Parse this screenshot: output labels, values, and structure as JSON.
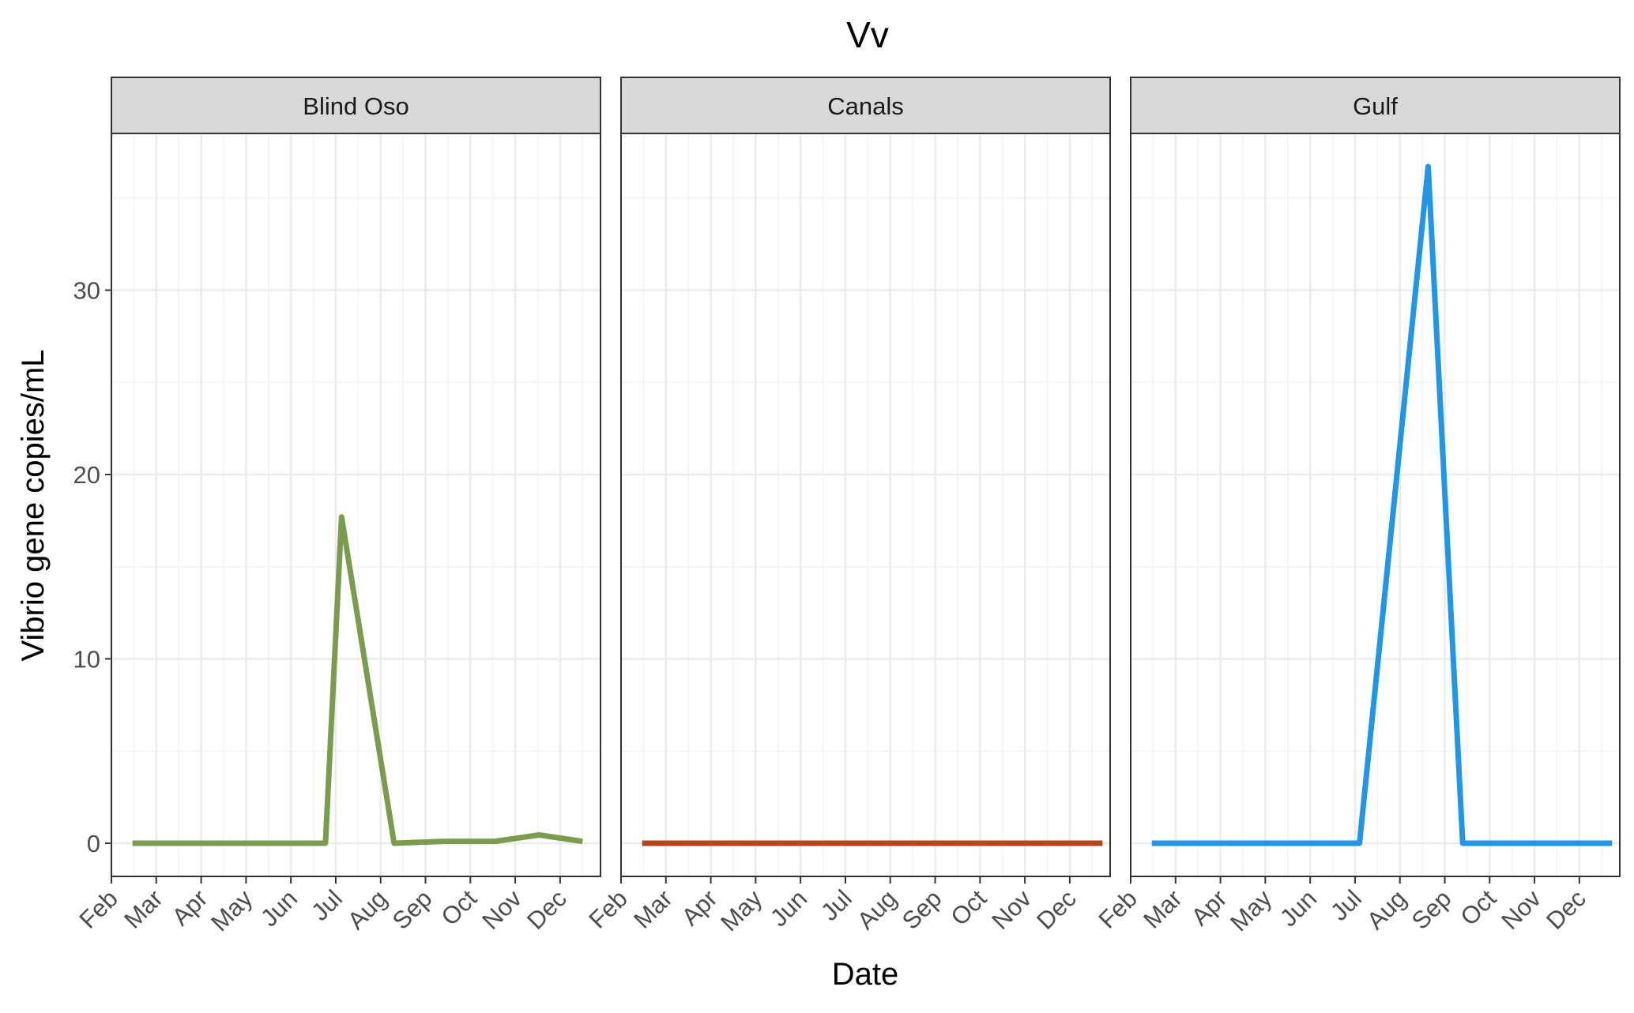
{
  "chart_data": {
    "type": "line",
    "title": "Vv",
    "xlabel": "Date",
    "ylabel": "Vibrio gene copies/mL",
    "x_tick_labels": [
      "Feb",
      "Mar",
      "Apr",
      "May",
      "Jun",
      "Jul",
      "Aug",
      "Sep",
      "Oct",
      "Nov",
      "Dec"
    ],
    "y_tick_labels": [
      "0",
      "10",
      "20",
      "30"
    ],
    "y_ticks": [
      0,
      10,
      20,
      30
    ],
    "ylim": [
      -1.8,
      38.5
    ],
    "xlim_months": [
      2.0,
      12.9
    ],
    "grid": true,
    "facets": [
      {
        "label": "Blind Oso",
        "color": "#7B9C4F",
        "points": [
          {
            "date": "Feb 15",
            "x": 2.47,
            "y": 0
          },
          {
            "date": "Jun 24",
            "x": 6.77,
            "y": 0
          },
          {
            "date": "Jul 5",
            "x": 7.13,
            "y": 17.7
          },
          {
            "date": "Aug 10",
            "x": 8.3,
            "y": 0
          },
          {
            "date": "Sep 13",
            "x": 9.4,
            "y": 0.1
          },
          {
            "date": "Oct 18",
            "x": 10.55,
            "y": 0.1
          },
          {
            "date": "Nov 17",
            "x": 11.53,
            "y": 0.45
          },
          {
            "date": "Dec 16",
            "x": 12.5,
            "y": 0.1
          }
        ]
      },
      {
        "label": "Canals",
        "color": "#B5451B",
        "points": [
          {
            "date": "Feb 15",
            "x": 2.47,
            "y": 0
          },
          {
            "date": "Dec 23",
            "x": 12.73,
            "y": 0
          }
        ]
      },
      {
        "label": "Gulf",
        "color": "#2196E6",
        "points": [
          {
            "date": "Feb 15",
            "x": 2.47,
            "y": 0
          },
          {
            "date": "Jul 4",
            "x": 7.1,
            "y": 0
          },
          {
            "date": "Aug 20",
            "x": 8.63,
            "y": 36.7
          },
          {
            "date": "Sep 13",
            "x": 9.4,
            "y": 0
          },
          {
            "date": "Dec 23",
            "x": 12.73,
            "y": 0
          }
        ]
      }
    ]
  }
}
